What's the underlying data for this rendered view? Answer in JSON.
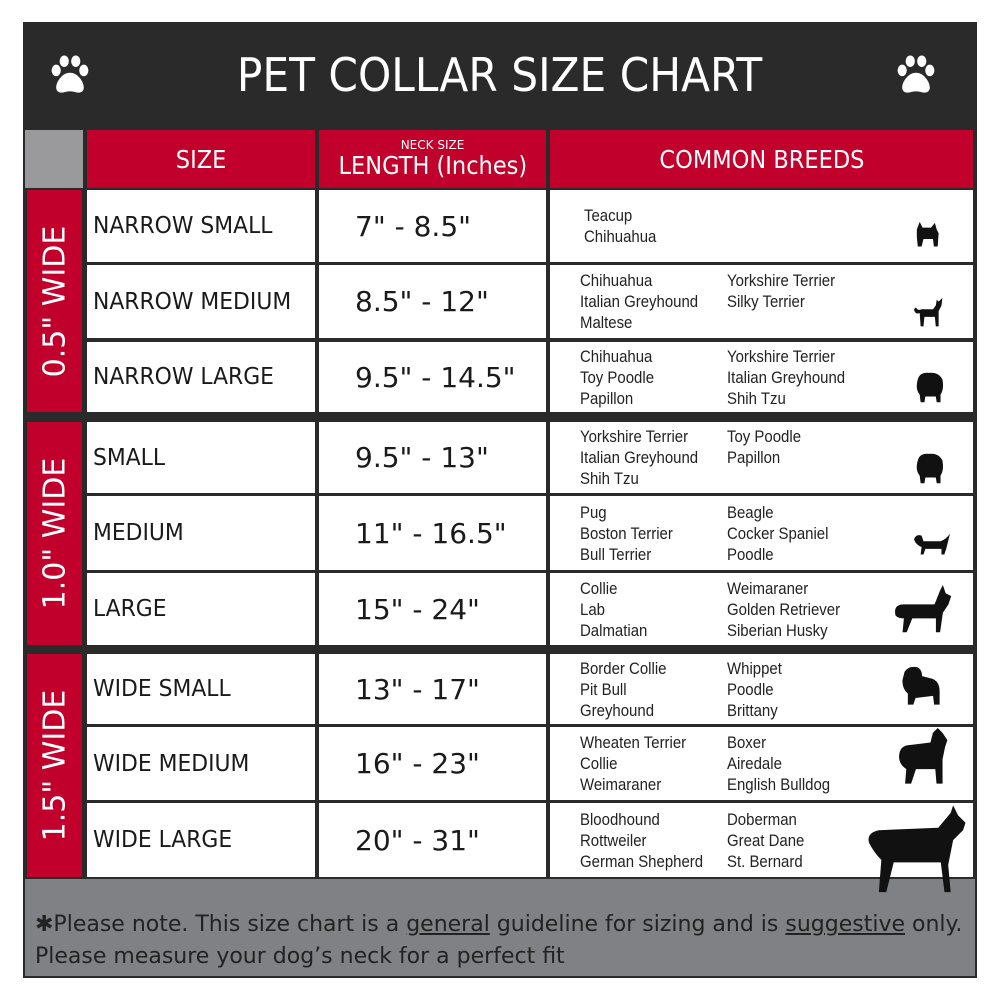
{
  "title": "PET COLLAR SIZE CHART",
  "header": {
    "size": "SIZE",
    "neck_size": "NECK SIZE",
    "length": "LENGTH (Inches)",
    "breeds": "COMMON BREEDS"
  },
  "groups": [
    {
      "label": "0.5\" WIDE"
    },
    {
      "label": "1.0\" WIDE"
    },
    {
      "label": "1.5\" WIDE"
    }
  ],
  "rows": [
    {
      "size": "NARROW SMALL",
      "length": "7\" - 8.5\"",
      "col1": [
        "Teacup",
        "Chihuahua"
      ],
      "col2": [],
      "icon": "yorkie-silhouette-icon"
    },
    {
      "size": "NARROW MEDIUM",
      "length": "8.5\" - 12\"",
      "col1": [
        "Chihuahua",
        "Italian Greyhound",
        "Maltese"
      ],
      "col2": [
        "Yorkshire Terrier",
        "Silky Terrier"
      ],
      "icon": "chihuahua-silhouette-icon"
    },
    {
      "size": "NARROW LARGE",
      "length": "9.5\" - 14.5\"",
      "col1": [
        "Chihuahua",
        "Toy Poodle",
        "Papillon"
      ],
      "col2": [
        "Yorkshire Terrier",
        "Italian Greyhound",
        "Shih Tzu"
      ],
      "icon": "pomeranian-silhouette-icon"
    },
    {
      "size": "SMALL",
      "length": "9.5\" - 13\"",
      "col1": [
        "Yorkshire Terrier",
        "Italian Greyhound",
        "Shih Tzu"
      ],
      "col2": [
        "Toy Poodle",
        "Papillon"
      ],
      "icon": "pomeranian-silhouette-icon"
    },
    {
      "size": "MEDIUM",
      "length": "11\" - 16.5\"",
      "col1": [
        "Pug",
        "Boston Terrier",
        "Bull Terrier"
      ],
      "col2": [
        "Beagle",
        "Cocker Spaniel",
        "Poodle"
      ],
      "icon": "dachshund-silhouette-icon"
    },
    {
      "size": "LARGE",
      "length": "15\" - 24\"",
      "col1": [
        "Collie",
        "Lab",
        "Dalmatian"
      ],
      "col2": [
        "Weimaraner",
        "Golden Retriever",
        "Siberian Husky"
      ],
      "icon": "shepherd-silhouette-icon"
    },
    {
      "size": "WIDE SMALL",
      "length": "13\" - 17\"",
      "col1": [
        "Border Collie",
        "Pit Bull",
        "Greyhound"
      ],
      "col2": [
        "Whippet",
        "Poodle",
        "Brittany"
      ],
      "icon": "bulldog-silhouette-icon"
    },
    {
      "size": "WIDE MEDIUM",
      "length": "16\" - 23\"",
      "col1": [
        "Wheaten Terrier",
        "Collie",
        "Weimaraner"
      ],
      "col2": [
        "Boxer",
        "Airedale",
        "English Bulldog"
      ],
      "icon": "pitbull-silhouette-icon"
    },
    {
      "size": "WIDE LARGE",
      "length": "20\" - 31\"",
      "col1": [
        "Bloodhound",
        "Rottweiler",
        "German Shepherd"
      ],
      "col2": [
        "Doberman",
        "Great Dane",
        "St. Bernard"
      ],
      "icon": "doberman-silhouette-icon"
    }
  ],
  "footer": {
    "line1_a": "✱Please note. This size chart is a ",
    "line1_b": "general",
    "line1_c": " guideline for sizing and is ",
    "line1_d": "suggestive",
    "line1_e": " only.",
    "line2": "Please measure your dog’s neck for a perfect fit"
  },
  "colors": {
    "accent": "#c1002b",
    "frame": "#2a2a2a",
    "footer": "#808184"
  }
}
